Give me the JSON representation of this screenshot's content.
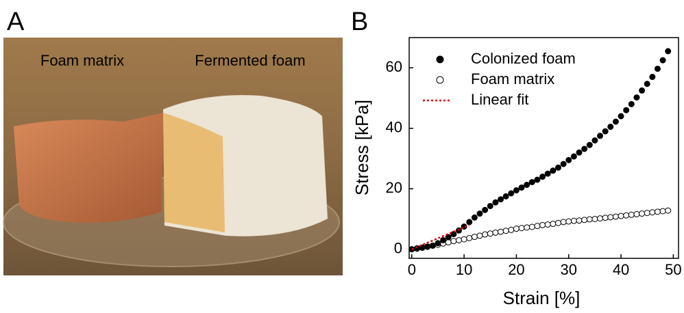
{
  "panel_a": {
    "label": "A",
    "captions": [
      "Foam matrix",
      "Fermented foam"
    ]
  },
  "chart_data": {
    "type": "scatter",
    "panel_label": "B",
    "x_label": "Strain [%]",
    "y_label": "Stress [kPa]",
    "xlim": [
      -0.5,
      51
    ],
    "ylim": [
      -3,
      70
    ],
    "xticks": [
      0,
      10,
      20,
      30,
      40,
      50
    ],
    "yticks": [
      0,
      20,
      40,
      60
    ],
    "legend": "upper-left",
    "series": [
      {
        "name": "Colonized foam",
        "color": "#000000",
        "marker": "filled",
        "x": [
          0,
          1,
          2,
          3,
          4,
          5,
          6,
          7,
          8,
          9,
          10,
          11,
          12,
          13,
          14,
          15,
          16,
          17,
          18,
          19,
          20,
          21,
          22,
          23,
          24,
          25,
          26,
          27,
          28,
          29,
          30,
          31,
          32,
          33,
          34,
          35,
          36,
          37,
          38,
          39,
          40,
          41,
          42,
          43,
          44,
          45,
          46,
          47,
          48,
          49
        ],
        "values": [
          0,
          0.2,
          0.5,
          0.8,
          1.2,
          2.0,
          3.0,
          4.0,
          5.0,
          6.2,
          7.5,
          9.0,
          10.5,
          11.8,
          13.0,
          14.3,
          15.5,
          16.5,
          17.5,
          18.5,
          19.5,
          20.4,
          21.3,
          22.2,
          23.0,
          24.0,
          25.0,
          26.0,
          27.0,
          28.2,
          29.5,
          30.7,
          32.0,
          33.2,
          34.5,
          36.0,
          37.5,
          39.0,
          40.5,
          42.2,
          44.0,
          46.0,
          48.0,
          50.2,
          52.5,
          54.7,
          57.0,
          59.7,
          62.5,
          65.5
        ]
      },
      {
        "name": "Foam matrix",
        "color": "#000000",
        "marker": "open",
        "x": [
          0,
          1,
          2,
          3,
          4,
          5,
          6,
          7,
          8,
          9,
          10,
          11,
          12,
          13,
          14,
          15,
          16,
          17,
          18,
          19,
          20,
          21,
          22,
          23,
          24,
          25,
          26,
          27,
          28,
          29,
          30,
          31,
          32,
          33,
          34,
          35,
          36,
          37,
          38,
          39,
          40,
          41,
          42,
          43,
          44,
          45,
          46,
          47,
          48,
          49
        ],
        "values": [
          0,
          0.3,
          0.6,
          0.9,
          1.2,
          1.5,
          1.9,
          2.3,
          2.7,
          3.0,
          3.3,
          3.7,
          4.1,
          4.5,
          4.9,
          5.2,
          5.5,
          5.8,
          6.1,
          6.4,
          6.8,
          7.0,
          7.2,
          7.4,
          7.7,
          8.0,
          8.2,
          8.4,
          8.7,
          9.0,
          9.2,
          9.4,
          9.5,
          9.7,
          9.9,
          10.0,
          10.2,
          10.4,
          10.6,
          10.8,
          11.0,
          11.2,
          11.4,
          11.6,
          11.8,
          12.0,
          12.2,
          12.4,
          12.6,
          12.8
        ]
      },
      {
        "name": "Linear fit",
        "color": "#e00000",
        "marker": "dotted-line",
        "x": [
          0,
          11
        ],
        "values": [
          0,
          8
        ]
      }
    ]
  }
}
